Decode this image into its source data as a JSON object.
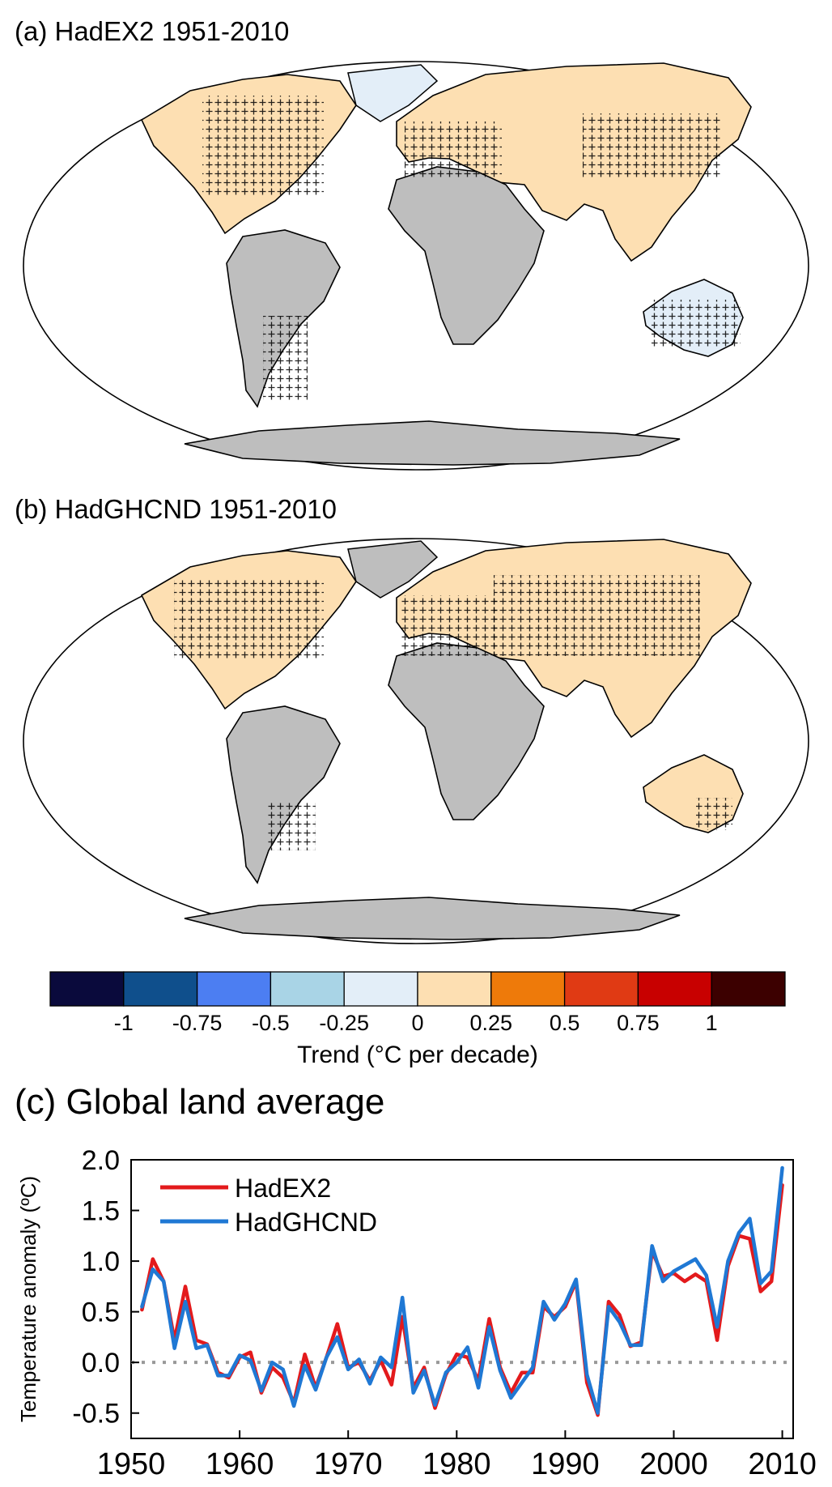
{
  "panels": {
    "a": {
      "title": "(a) HadEX2 1951-2010"
    },
    "b": {
      "title": "(b) HadGHCND 1951-2010"
    },
    "c": {
      "title": "(c) Global land average"
    }
  },
  "colorbar": {
    "label": "Trend (°C per decade)",
    "tick_labels": [
      "-1",
      "-0.75",
      "-0.5",
      "-0.25",
      "0",
      "0.25",
      "0.5",
      "0.75",
      "1"
    ],
    "colors": [
      "#0a0a3c",
      "#0f4f8c",
      "#4c7ef2",
      "#a9d4e6",
      "#e3eef8",
      "#fddfb2",
      "#ee7a0a",
      "#e03a14",
      "#c80000",
      "#3c0000"
    ]
  },
  "map_colors": {
    "ocean": "#ffffff",
    "land_missing": "#bebebe",
    "coastline": "#000000"
  },
  "chart_data": {
    "type": "line",
    "title": "(c) Global land average",
    "xlabel": "",
    "ylabel": "Temperature anomaly (ºC)",
    "xlim": [
      1950,
      2011
    ],
    "ylim": [
      -0.75,
      2.0
    ],
    "x_ticks": [
      1950,
      1960,
      1970,
      1980,
      1990,
      2000,
      2010
    ],
    "y_ticks": [
      -0.5,
      0.0,
      0.5,
      1.0,
      1.5,
      2.0
    ],
    "y_tick_labels": [
      "-0.5",
      "0.0",
      "0.5",
      "1.0",
      "1.5",
      "2.0"
    ],
    "reference_line": 0.0,
    "legend_position": "top-left",
    "x": [
      1951,
      1952,
      1953,
      1954,
      1955,
      1956,
      1957,
      1958,
      1959,
      1960,
      1961,
      1962,
      1963,
      1964,
      1965,
      1966,
      1967,
      1968,
      1969,
      1970,
      1971,
      1972,
      1973,
      1974,
      1975,
      1976,
      1977,
      1978,
      1979,
      1980,
      1981,
      1982,
      1983,
      1984,
      1985,
      1986,
      1987,
      1988,
      1989,
      1990,
      1991,
      1992,
      1993,
      1994,
      1995,
      1996,
      1997,
      1998,
      1999,
      2000,
      2001,
      2002,
      2003,
      2004,
      2005,
      2006,
      2007,
      2008,
      2009,
      2010
    ],
    "series": [
      {
        "name": "HadEX2",
        "color": "#e31a1c",
        "values": [
          0.52,
          1.02,
          0.8,
          0.22,
          0.75,
          0.22,
          0.18,
          -0.1,
          -0.15,
          0.05,
          0.1,
          -0.3,
          -0.05,
          -0.15,
          -0.4,
          0.08,
          -0.25,
          0.05,
          0.38,
          -0.05,
          0.0,
          -0.18,
          0.02,
          -0.22,
          0.45,
          -0.25,
          -0.05,
          -0.45,
          -0.12,
          0.08,
          0.05,
          -0.18,
          0.43,
          -0.05,
          -0.3,
          -0.1,
          -0.1,
          0.55,
          0.45,
          0.55,
          0.8,
          -0.2,
          -0.52,
          0.6,
          0.47,
          0.16,
          0.2,
          1.1,
          0.85,
          0.88,
          0.8,
          0.87,
          0.8,
          0.22,
          0.95,
          1.25,
          1.22,
          0.7,
          0.8,
          1.75
        ]
      },
      {
        "name": "HadGHCND",
        "color": "#1f78d4",
        "values": [
          0.55,
          0.92,
          0.8,
          0.14,
          0.6,
          0.14,
          0.17,
          -0.13,
          -0.13,
          0.07,
          0.02,
          -0.28,
          0.0,
          -0.07,
          -0.43,
          -0.03,
          -0.27,
          0.05,
          0.25,
          -0.07,
          0.03,
          -0.21,
          0.05,
          -0.05,
          0.64,
          -0.3,
          -0.08,
          -0.42,
          -0.1,
          0.0,
          0.15,
          -0.25,
          0.35,
          -0.08,
          -0.35,
          -0.2,
          -0.05,
          0.6,
          0.42,
          0.58,
          0.82,
          -0.12,
          -0.5,
          0.55,
          0.4,
          0.17,
          0.17,
          1.15,
          0.8,
          0.9,
          0.96,
          1.02,
          0.86,
          0.35,
          1.0,
          1.28,
          1.42,
          0.78,
          0.9,
          1.92
        ]
      }
    ]
  }
}
